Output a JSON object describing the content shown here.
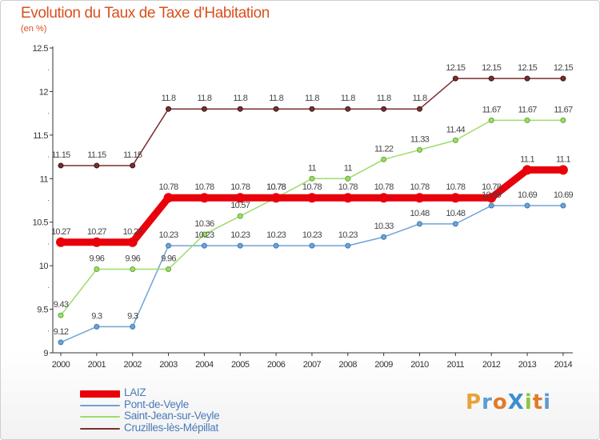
{
  "header": {
    "title": "Evolution du Taux de Taxe d'Habitation",
    "unit": "(en %)"
  },
  "brand": {
    "text": "ProXiti",
    "letters": [
      {
        "ch": "P",
        "color": "#e8a23a"
      },
      {
        "ch": "r",
        "color": "#5b9bd5"
      },
      {
        "ch": "o",
        "color": "#e07b2a"
      },
      {
        "ch": "X",
        "color": "#3a8fd0"
      },
      {
        "ch": "i",
        "color": "#8cc63f"
      },
      {
        "ch": "t",
        "color": "#e07b2a"
      },
      {
        "ch": "i",
        "color": "#5b9bd5"
      }
    ]
  },
  "chart_data": {
    "type": "line",
    "title": "Evolution du Taux de Taxe d'Habitation",
    "ylabel": "(en %)",
    "xlabel": "",
    "x": [
      "2000",
      "2001",
      "2002",
      "2003",
      "2004",
      "2005",
      "2006",
      "2007",
      "2008",
      "2009",
      "2010",
      "2011",
      "2012",
      "2013",
      "2014"
    ],
    "ylim": [
      9,
      12.5
    ],
    "yticks": [
      "9",
      "9.5",
      "10",
      "10.5",
      "11",
      "11.5",
      "12",
      "12.5"
    ],
    "grid": false,
    "legend": "bottom-left",
    "series": [
      {
        "name": "LAIZ",
        "color": "#e8000b",
        "width": 9,
        "values": [
          10.27,
          10.27,
          10.27,
          10.78,
          10.78,
          10.78,
          10.78,
          10.78,
          10.78,
          10.78,
          10.78,
          10.78,
          10.78,
          11.1,
          11.1
        ],
        "labels": [
          "10.27",
          "10.27",
          "10.27",
          "10.78",
          "10.78",
          "10.78",
          "10.78",
          "10.78",
          "10.78",
          "10.78",
          "10.78",
          "10.78",
          "10.78",
          "11.1",
          "11.1"
        ]
      },
      {
        "name": "Pont-de-Veyle",
        "color": "#6fa3d6",
        "width": 1.5,
        "values": [
          9.12,
          9.3,
          9.3,
          10.23,
          10.23,
          10.23,
          10.23,
          10.23,
          10.23,
          10.33,
          10.48,
          10.48,
          10.69,
          10.69,
          10.69
        ],
        "labels": [
          "9.12",
          "9.3",
          "9.3",
          "10.23",
          "10.23",
          "10.23",
          "10.23",
          "10.23",
          "10.23",
          "10.33",
          "10.48",
          "10.48",
          "10.69",
          "10.69",
          "10.69"
        ]
      },
      {
        "name": "Saint-Jean-sur-Veyle",
        "color": "#9edc6a",
        "width": 1.5,
        "values": [
          9.43,
          9.96,
          9.96,
          9.96,
          10.36,
          10.57,
          10.78,
          11,
          11,
          11.22,
          11.33,
          11.44,
          11.67,
          11.67,
          11.67
        ],
        "labels": [
          "9.43",
          "9.96",
          "9.96",
          "9.96",
          "10.36",
          "10.57",
          "10.78",
          "11",
          "11",
          "11.22",
          "11.33",
          "11.44",
          "11.67",
          "11.67",
          "11.67"
        ]
      },
      {
        "name": "Cruzilles-lès-Mépillat",
        "color": "#7a2f2f",
        "width": 1.5,
        "values": [
          11.15,
          11.15,
          11.15,
          11.8,
          11.8,
          11.8,
          11.8,
          11.8,
          11.8,
          11.8,
          11.8,
          12.15,
          12.15,
          12.15,
          12.15
        ],
        "labels": [
          "11.15",
          "11.15",
          "11.15",
          "11.8",
          "11.8",
          "11.8",
          "11.8",
          "11.8",
          "11.8",
          "11.8",
          "11.8",
          "12.15",
          "12.15",
          "12.15",
          "12.15"
        ]
      }
    ]
  }
}
